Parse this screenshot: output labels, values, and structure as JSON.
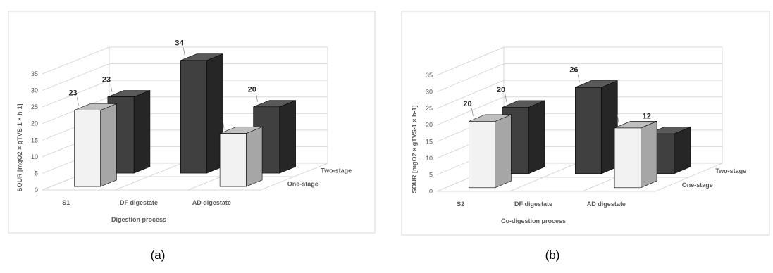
{
  "chart_data": [
    {
      "type": "bar",
      "panel_label": "(a)",
      "categories": [
        "S1",
        "DF digestate",
        "AD digestate"
      ],
      "series": [
        {
          "name": "One-stage",
          "values": [
            23,
            null,
            16
          ]
        },
        {
          "name": "Two-stage",
          "values": [
            23,
            34,
            20
          ]
        }
      ],
      "xlabel": "Digestion process",
      "ylabel": "SOUR [mgO2 × gTVS-1 × h-1]",
      "ylim": [
        0,
        35
      ],
      "yticks": [
        0,
        5,
        10,
        15,
        20,
        25,
        30,
        35
      ],
      "grid": true,
      "legend": "series labels along right depth axis"
    },
    {
      "type": "bar",
      "panel_label": "(b)",
      "categories": [
        "S2",
        "DF digestate",
        "AD digestate"
      ],
      "series": [
        {
          "name": "One-stage",
          "values": [
            20,
            null,
            18
          ]
        },
        {
          "name": "Two-stage",
          "values": [
            20,
            26,
            12
          ]
        }
      ],
      "xlabel": "Co-digestion process",
      "ylabel": "SOUR [mgO2 × gTVS-1 × h-1]",
      "ylim": [
        0,
        35
      ],
      "yticks": [
        0,
        5,
        10,
        15,
        20,
        25,
        30,
        35
      ],
      "grid": true,
      "legend": "series labels along right depth axis"
    }
  ],
  "colors": {
    "one_stage_front": "#f2f2f2",
    "one_stage_side": "#a6a6a6",
    "one_stage_top": "#bfbfbf",
    "two_stage_front": "#404040",
    "two_stage_side": "#262626",
    "two_stage_top": "#595959",
    "grid": "#d9d9d9",
    "text": "#595959"
  }
}
